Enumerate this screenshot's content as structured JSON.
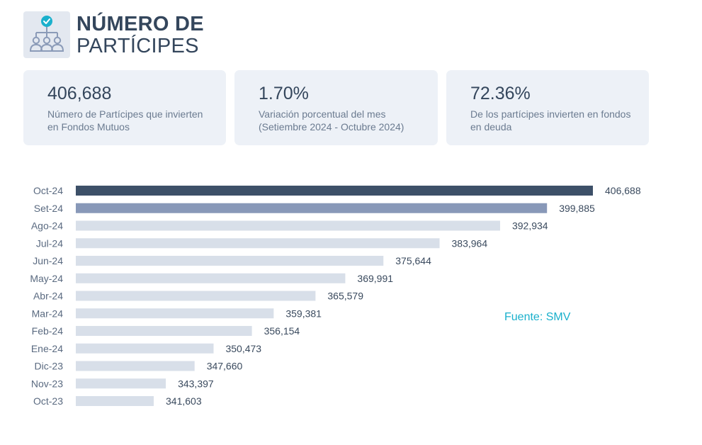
{
  "header": {
    "title_line1": "NÚMERO DE",
    "title_line2": "PARTÍCIPES",
    "icon": "people-network-check-icon"
  },
  "cards": [
    {
      "value": "406,688",
      "desc_line1": "Número de Partícipes que invierten",
      "desc_line2": "en Fondos Mutuos"
    },
    {
      "value": "1.70%",
      "desc_line1": "Variación porcentual del mes",
      "desc_line2": "(Setiembre 2024 - Octubre 2024)"
    },
    {
      "value": "72.36%",
      "desc_line1": "De los partícipes invierten en fondos",
      "desc_line2": "en deuda"
    }
  ],
  "source": "Fuente: SMV",
  "colors": {
    "highlight": "#3d5068",
    "previous": "#8898b8",
    "rest": "#d8dfe9",
    "accent": "#1ab0cc"
  },
  "chart_data": {
    "type": "bar",
    "orientation": "horizontal",
    "categories": [
      "Oct-24",
      "Set-24",
      "Ago-24",
      "Jul-24",
      "Jun-24",
      "May-24",
      "Abr-24",
      "Mar-24",
      "Feb-24",
      "Ene-24",
      "Dic-23",
      "Nov-23",
      "Oct-23"
    ],
    "values": [
      406688,
      399885,
      392934,
      383964,
      375644,
      369991,
      365579,
      359381,
      356154,
      350473,
      347660,
      343397,
      341603
    ],
    "value_labels": [
      "406,688",
      "399,885",
      "392,934",
      "383,964",
      "375,644",
      "369,991",
      "365,579",
      "359,381",
      "356,154",
      "350,473",
      "347,660",
      "343,397",
      "341,603"
    ],
    "title": "",
    "xlabel": "",
    "ylabel": "",
    "grid": false,
    "legend": "none"
  }
}
